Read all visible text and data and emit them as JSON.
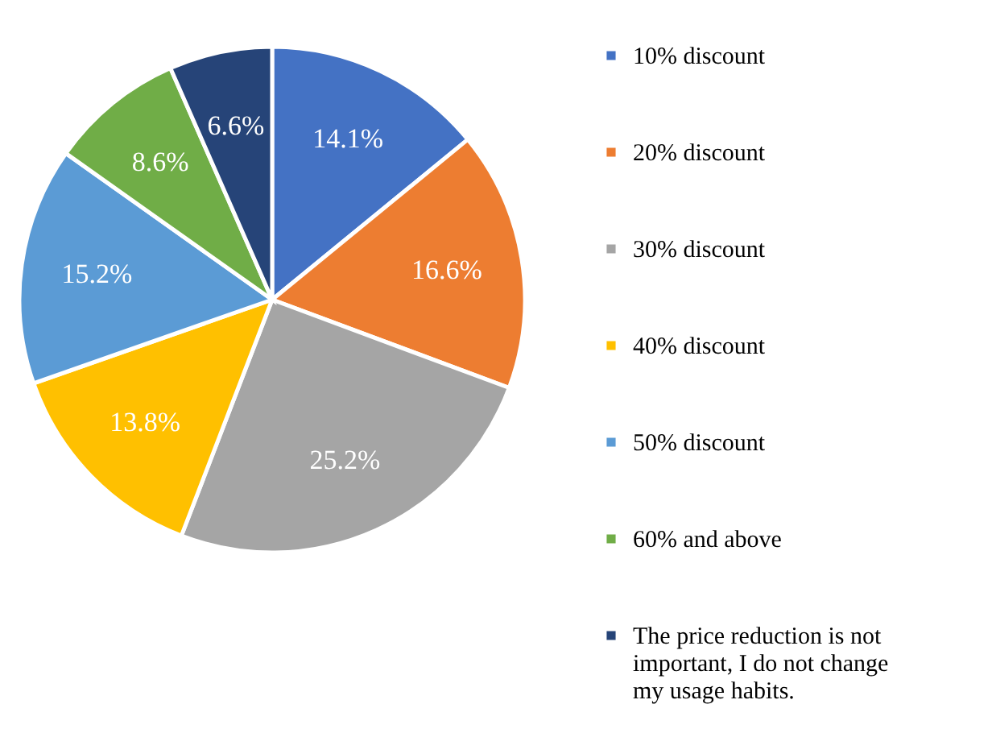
{
  "chart_data": {
    "type": "pie",
    "categories": [
      "10% discount",
      "20% discount",
      "30% discount",
      "40% discount",
      "50% discount",
      "60% and above",
      "The price reduction is not important, I do not change my usage habits."
    ],
    "values": [
      14.1,
      16.6,
      25.2,
      13.8,
      15.2,
      8.6,
      6.6
    ],
    "value_labels": [
      "14.1%",
      "16.6%",
      "25.2%",
      "13.8%",
      "15.2%",
      "8.6%",
      "6.6%"
    ],
    "colors": [
      "#4472c4",
      "#ed7d31",
      "#a5a5a5",
      "#ffc000",
      "#5b9bd5",
      "#70ad47",
      "#264478"
    ],
    "legend": "right"
  }
}
